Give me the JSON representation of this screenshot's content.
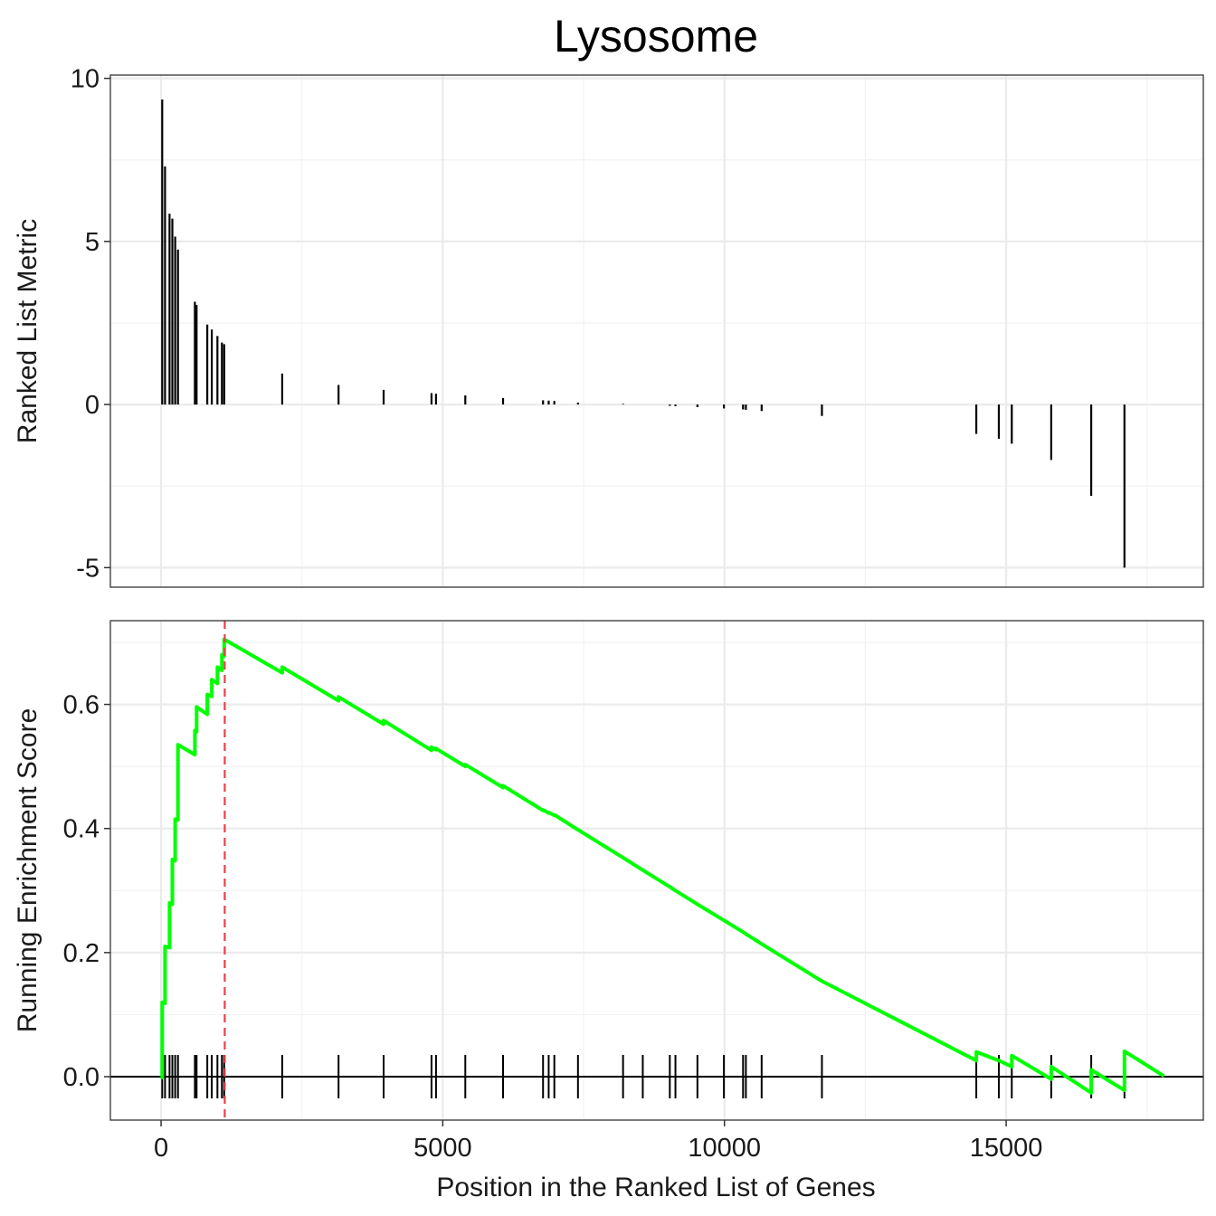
{
  "chart_data": {
    "type": "line",
    "title": "Lysosome",
    "xlabel": "Position in the Ranked List of Genes",
    "xlim": [
      -900,
      18500
    ],
    "x_ticks": [
      0,
      5000,
      10000,
      15000
    ],
    "x_tick_labels": [
      "0",
      "5000",
      "10000",
      "15000"
    ],
    "grid": true,
    "colors": {
      "running_score": "#00ff00",
      "peak_marker": "#e8414a",
      "ranked_metric_bars": "#000000"
    },
    "panels": [
      {
        "name": "ranked-metric",
        "type": "bar",
        "ylabel": "Ranked List Metric",
        "ylim": [
          -5.6,
          10.1
        ],
        "y_ticks": [
          -5,
          0,
          5,
          10
        ],
        "y_tick_labels": [
          "-5",
          "0",
          "5",
          "10"
        ],
        "series": [
          {
            "x": [
              20,
              70,
              150,
              200,
              250,
              300,
              600,
              630,
              820,
              900,
              1000,
              1080,
              1120,
              2150,
              3150,
              3950,
              4800,
              4880,
              5400,
              6070,
              6780,
              6880,
              6980,
              7400,
              8200,
              8550,
              9030,
              9130,
              9520,
              9990,
              10330,
              10380,
              10660,
              11730,
              14470,
              14870,
              15100,
              15800,
              16510,
              17100
            ],
            "values": [
              9.35,
              7.3,
              5.85,
              5.7,
              5.15,
              4.75,
              3.15,
              3.05,
              2.45,
              2.3,
              2.1,
              1.9,
              1.85,
              0.95,
              0.6,
              0.45,
              0.35,
              0.33,
              0.28,
              0.2,
              0.13,
              0.12,
              0.11,
              0.06,
              0.02,
              0.0,
              -0.04,
              -0.05,
              -0.08,
              -0.12,
              -0.15,
              -0.16,
              -0.2,
              -0.35,
              -0.9,
              -1.05,
              -1.2,
              -1.7,
              -2.8,
              -5.0
            ]
          }
        ]
      },
      {
        "name": "running-enrichment-score",
        "type": "line",
        "ylabel": "Running Enrichment Score",
        "ylim": [
          -0.07,
          0.735
        ],
        "y_ticks": [
          0.0,
          0.2,
          0.4,
          0.6
        ],
        "y_tick_labels": [
          "0.0",
          "0.2",
          "0.4",
          "0.6"
        ],
        "peak_x": 1130,
        "hit_positions": [
          20,
          70,
          150,
          200,
          250,
          300,
          600,
          630,
          820,
          900,
          1000,
          1080,
          1120,
          2150,
          3150,
          3950,
          4800,
          4880,
          5400,
          6070,
          6780,
          6880,
          6980,
          7400,
          8200,
          8550,
          9030,
          9130,
          9520,
          9990,
          10330,
          10380,
          10660,
          11730,
          14470,
          14870,
          15100,
          15800,
          16510,
          17100
        ],
        "series": [
          {
            "x": [
              0,
              20,
              20,
              70,
              70,
              150,
              150,
              200,
              200,
              250,
              250,
              300,
              300,
              600,
              600,
              630,
              630,
              820,
              820,
              900,
              900,
              1000,
              1000,
              1080,
              1080,
              1120,
              1120,
              2150,
              2150,
              3150,
              3150,
              3950,
              3950,
              4800,
              4800,
              4880,
              4880,
              5400,
              5400,
              6070,
              6070,
              6780,
              6780,
              6880,
              6880,
              6980,
              6980,
              7400,
              7400,
              8200,
              8200,
              8550,
              8550,
              9030,
              9030,
              9130,
              9130,
              9520,
              9520,
              9990,
              9990,
              10330,
              10330,
              10380,
              10380,
              10660,
              10660,
              11730,
              11730,
              14470,
              14470,
              14870,
              14870,
              15100,
              15100,
              15800,
              15800,
              16510,
              16510,
              17100,
              17100,
              17800
            ],
            "values": [
              0.0,
              -0.001,
              0.12,
              0.118,
              0.21,
              0.208,
              0.28,
              0.278,
              0.35,
              0.348,
              0.415,
              0.414,
              0.535,
              0.519,
              0.558,
              0.556,
              0.596,
              0.584,
              0.616,
              0.613,
              0.64,
              0.634,
              0.66,
              0.655,
              0.68,
              0.678,
              0.705,
              0.651,
              0.66,
              0.606,
              0.612,
              0.568,
              0.574,
              0.526,
              0.531,
              0.527,
              0.529,
              0.5,
              0.503,
              0.466,
              0.469,
              0.429,
              0.43,
              0.425,
              0.426,
              0.421,
              0.422,
              0.398,
              0.398,
              0.353,
              0.353,
              0.333,
              0.333,
              0.306,
              0.306,
              0.3,
              0.3,
              0.278,
              0.278,
              0.252,
              0.252,
              0.233,
              0.233,
              0.23,
              0.23,
              0.214,
              0.214,
              0.154,
              0.154,
              0.026,
              0.04,
              0.026,
              0.026,
              0.016,
              0.034,
              -0.004,
              0.016,
              -0.026,
              0.011,
              -0.022,
              0.041,
              0.001
            ]
          }
        ]
      }
    ]
  }
}
